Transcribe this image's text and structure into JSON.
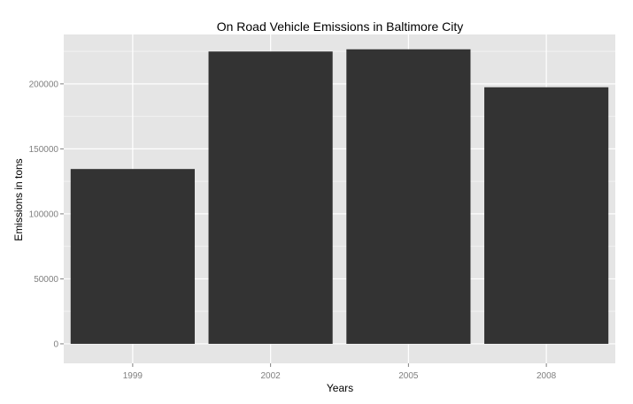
{
  "chart_data": {
    "type": "bar",
    "title": "On Road Vehicle Emissions in Baltimore City",
    "xlabel": "Years",
    "ylabel": "Emissions in tons",
    "categories": [
      "1999",
      "2002",
      "2005",
      "2008"
    ],
    "values": [
      134500,
      224900,
      226600,
      197400
    ],
    "ylim": [
      -15000,
      238000
    ],
    "yticks": [
      0,
      50000,
      100000,
      150000,
      200000
    ],
    "ytick_labels": [
      "0",
      "50000",
      "100000",
      "150000",
      "200000"
    ],
    "grid": true,
    "colors": {
      "bar": "#333333",
      "panel": "#e5e5e5",
      "grid_major": "#ffffff",
      "grid_minor": "#f2f2f2",
      "tick_label": "#7f7f7f"
    }
  }
}
